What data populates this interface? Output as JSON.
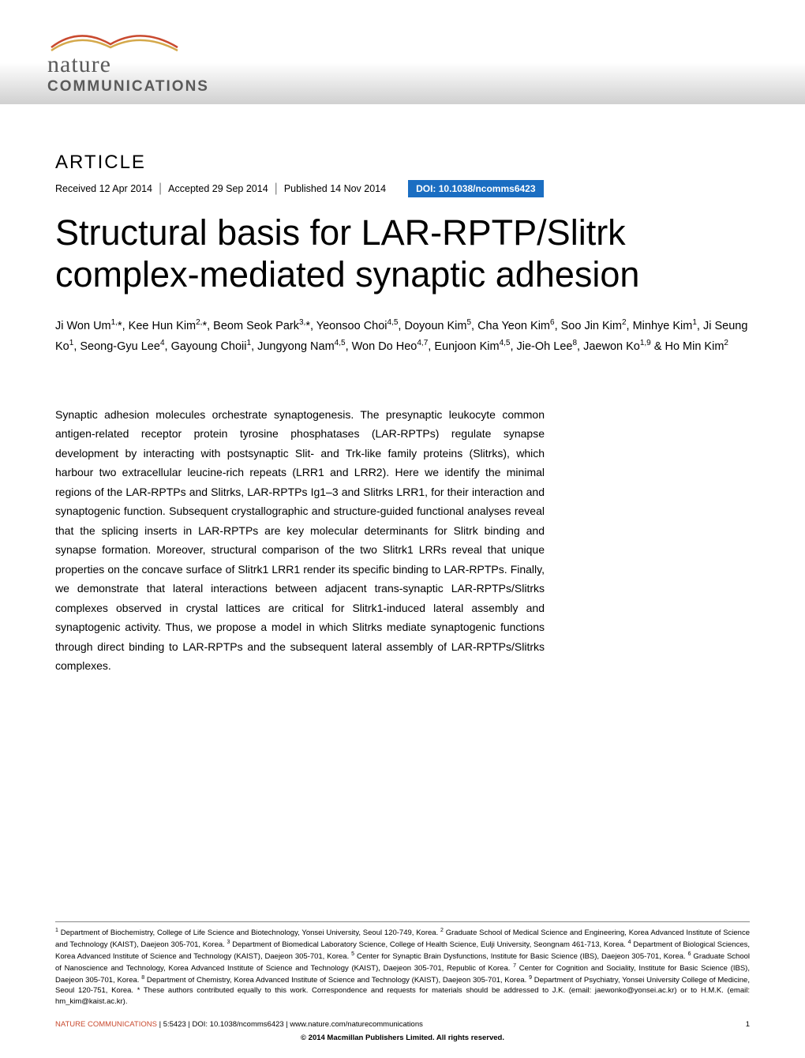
{
  "journal": {
    "logo_nature": "nature",
    "logo_communications": "COMMUNICATIONS",
    "swoosh_color1": "#c94a2f",
    "swoosh_color2": "#d4a84a"
  },
  "article": {
    "label": "ARTICLE",
    "received": "Received 12 Apr 2014",
    "accepted": "Accepted 29 Sep 2014",
    "published": "Published 14 Nov 2014",
    "doi": "DOI: 10.1038/ncomms6423",
    "title": "Structural basis for LAR-RPTP/Slitrk complex-mediated synaptic adhesion"
  },
  "authors_html": "Ji Won Um<sup>1,</sup>*, Kee Hun Kim<sup>2,</sup>*, Beom Seok Park<sup>3,</sup>*, Yeonsoo Choi<sup>4,5</sup>, Doyoun Kim<sup>5</sup>, Cha Yeon Kim<sup>6</sup>, Soo Jin Kim<sup>2</sup>, Minhye Kim<sup>1</sup>, Ji Seung Ko<sup>1</sup>, Seong-Gyu Lee<sup>4</sup>, Gayoung Choii<sup>1</sup>, Jungyong Nam<sup>4,5</sup>, Won Do Heo<sup>4,7</sup>, Eunjoon Kim<sup>4,5</sup>, Jie-Oh Lee<sup>8</sup>, Jaewon Ko<sup>1,9</sup> & Ho Min Kim<sup>2</sup>",
  "abstract": "Synaptic adhesion molecules orchestrate synaptogenesis. The presynaptic leukocyte common antigen-related receptor protein tyrosine phosphatases (LAR-RPTPs) regulate synapse development by interacting with postsynaptic Slit- and Trk-like family proteins (Slitrks), which harbour two extracellular leucine-rich repeats (LRR1 and LRR2). Here we identify the minimal regions of the LAR-RPTPs and Slitrks, LAR-RPTPs Ig1–3 and Slitrks LRR1, for their interaction and synaptogenic function. Subsequent crystallographic and structure-guided functional analyses reveal that the splicing inserts in LAR-RPTPs are key molecular determinants for Slitrk binding and synapse formation. Moreover, structural comparison of the two Slitrk1 LRRs reveal that unique properties on the concave surface of Slitrk1 LRR1 render its specific binding to LAR-RPTPs. Finally, we demonstrate that lateral interactions between adjacent trans-synaptic LAR-RPTPs/Slitrks complexes observed in crystal lattices are critical for Slitrk1-induced lateral assembly and synaptogenic activity. Thus, we propose a model in which Slitrks mediate synaptogenic functions through direct binding to LAR-RPTPs and the subsequent lateral assembly of LAR-RPTPs/Slitrks complexes.",
  "affiliations_html": "<sup>1</sup> Department of Biochemistry, College of Life Science and Biotechnology, Yonsei University, Seoul 120-749, Korea. <sup>2</sup> Graduate School of Medical Science and Engineering, Korea Advanced Institute of Science and Technology (KAIST), Daejeon 305-701, Korea. <sup>3</sup> Department of Biomedical Laboratory Science, College of Health Science, Eulji University, Seongnam 461-713, Korea. <sup>4</sup> Department of Biological Sciences, Korea Advanced Institute of Science and Technology (KAIST), Daejeon 305-701, Korea. <sup>5</sup> Center for Synaptic Brain Dysfunctions, Institute for Basic Science (IBS), Daejeon 305-701, Korea. <sup>6</sup> Graduate School of Nanoscience and Technology, Korea Advanced Institute of Science and Technology (KAIST), Daejeon 305-701, Republic of Korea. <sup>7</sup> Center for Cognition and Sociality, Institute for Basic Science (IBS), Daejeon 305-701, Korea. <sup>8</sup> Department of Chemistry, Korea Advanced Institute of Science and Technology (KAIST), Daejeon 305-701, Korea. <sup>9</sup> Department of Psychiatry, Yonsei University College of Medicine, Seoul 120-751, Korea. * These authors contributed equally to this work. Correspondence and requests for materials should be addressed to J.K. (email: jaewonko@yonsei.ac.kr) or to H.M.K. (email: hm_kim@kaist.ac.kr).",
  "footer": {
    "citation_journal": "NATURE COMMUNICATIONS",
    "citation_rest": " | 5:5423 | DOI: 10.1038/ncomms6423 | www.nature.com/naturecommunications",
    "page_number": "1",
    "copyright": "© 2014 Macmillan Publishers Limited. All rights reserved."
  },
  "colors": {
    "doi_badge_bg": "#1b6ec2",
    "doi_badge_text": "#ffffff",
    "journal_accent": "#c94a2f",
    "body_text": "#000000",
    "logo_text": "#5a5a5a"
  },
  "typography": {
    "title_fontsize": 45,
    "title_weight": 300,
    "article_label_fontsize": 24,
    "meta_fontsize": 12.5,
    "authors_fontsize": 14.5,
    "abstract_fontsize": 14,
    "affiliations_fontsize": 9.5,
    "footer_fontsize": 9.5
  }
}
